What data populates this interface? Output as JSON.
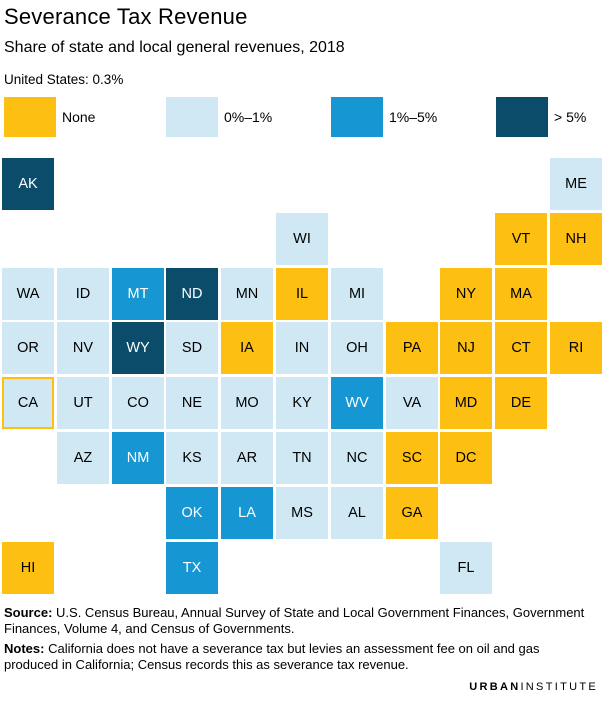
{
  "title": "Severance Tax Revenue",
  "subtitle": "Share of state and local general revenues, 2018",
  "us_average": "United States: 0.3%",
  "colors": {
    "none": "#fdbf11",
    "low": "#cfe8f3",
    "mid": "#1696d2",
    "high": "#0a4c6a"
  },
  "chart_data": {
    "type": "tile-map",
    "title": "Severance Tax Revenue",
    "subtitle": "Share of state and local general revenues, 2018",
    "legend": [
      {
        "key": "none",
        "label": "None"
      },
      {
        "key": "low",
        "label": "0%–1%"
      },
      {
        "key": "mid",
        "label": "1%–5%"
      },
      {
        "key": "high",
        "label": "> 5%"
      }
    ],
    "states": [
      {
        "abbr": "AK",
        "category": "high",
        "row": 0,
        "col": 0
      },
      {
        "abbr": "ME",
        "category": "low",
        "row": 0,
        "col": 10
      },
      {
        "abbr": "WI",
        "category": "low",
        "row": 1,
        "col": 5
      },
      {
        "abbr": "VT",
        "category": "none",
        "row": 1,
        "col": 9
      },
      {
        "abbr": "NH",
        "category": "none",
        "row": 1,
        "col": 10
      },
      {
        "abbr": "WA",
        "category": "low",
        "row": 2,
        "col": 0
      },
      {
        "abbr": "ID",
        "category": "low",
        "row": 2,
        "col": 1
      },
      {
        "abbr": "MT",
        "category": "mid",
        "row": 2,
        "col": 2
      },
      {
        "abbr": "ND",
        "category": "high",
        "row": 2,
        "col": 3
      },
      {
        "abbr": "MN",
        "category": "low",
        "row": 2,
        "col": 4
      },
      {
        "abbr": "IL",
        "category": "none",
        "row": 2,
        "col": 5
      },
      {
        "abbr": "MI",
        "category": "low",
        "row": 2,
        "col": 6
      },
      {
        "abbr": "NY",
        "category": "none",
        "row": 2,
        "col": 8
      },
      {
        "abbr": "MA",
        "category": "none",
        "row": 2,
        "col": 9
      },
      {
        "abbr": "OR",
        "category": "low",
        "row": 3,
        "col": 0
      },
      {
        "abbr": "NV",
        "category": "low",
        "row": 3,
        "col": 1
      },
      {
        "abbr": "WY",
        "category": "high",
        "row": 3,
        "col": 2
      },
      {
        "abbr": "SD",
        "category": "low",
        "row": 3,
        "col": 3
      },
      {
        "abbr": "IA",
        "category": "none",
        "row": 3,
        "col": 4
      },
      {
        "abbr": "IN",
        "category": "low",
        "row": 3,
        "col": 5
      },
      {
        "abbr": "OH",
        "category": "low",
        "row": 3,
        "col": 6
      },
      {
        "abbr": "PA",
        "category": "none",
        "row": 3,
        "col": 7
      },
      {
        "abbr": "NJ",
        "category": "none",
        "row": 3,
        "col": 8
      },
      {
        "abbr": "CT",
        "category": "none",
        "row": 3,
        "col": 9
      },
      {
        "abbr": "RI",
        "category": "none",
        "row": 3,
        "col": 10
      },
      {
        "abbr": "CA",
        "category": "low",
        "row": 4,
        "col": 0,
        "outlined": true
      },
      {
        "abbr": "UT",
        "category": "low",
        "row": 4,
        "col": 1
      },
      {
        "abbr": "CO",
        "category": "low",
        "row": 4,
        "col": 2
      },
      {
        "abbr": "NE",
        "category": "low",
        "row": 4,
        "col": 3
      },
      {
        "abbr": "MO",
        "category": "low",
        "row": 4,
        "col": 4
      },
      {
        "abbr": "KY",
        "category": "low",
        "row": 4,
        "col": 5
      },
      {
        "abbr": "WV",
        "category": "mid",
        "row": 4,
        "col": 6
      },
      {
        "abbr": "VA",
        "category": "low",
        "row": 4,
        "col": 7
      },
      {
        "abbr": "MD",
        "category": "none",
        "row": 4,
        "col": 8
      },
      {
        "abbr": "DE",
        "category": "none",
        "row": 4,
        "col": 9
      },
      {
        "abbr": "AZ",
        "category": "low",
        "row": 5,
        "col": 1
      },
      {
        "abbr": "NM",
        "category": "mid",
        "row": 5,
        "col": 2
      },
      {
        "abbr": "KS",
        "category": "low",
        "row": 5,
        "col": 3
      },
      {
        "abbr": "AR",
        "category": "low",
        "row": 5,
        "col": 4
      },
      {
        "abbr": "TN",
        "category": "low",
        "row": 5,
        "col": 5
      },
      {
        "abbr": "NC",
        "category": "low",
        "row": 5,
        "col": 6
      },
      {
        "abbr": "SC",
        "category": "none",
        "row": 5,
        "col": 7
      },
      {
        "abbr": "DC",
        "category": "none",
        "row": 5,
        "col": 8
      },
      {
        "abbr": "OK",
        "category": "mid",
        "row": 6,
        "col": 3
      },
      {
        "abbr": "LA",
        "category": "mid",
        "row": 6,
        "col": 4
      },
      {
        "abbr": "MS",
        "category": "low",
        "row": 6,
        "col": 5
      },
      {
        "abbr": "AL",
        "category": "low",
        "row": 6,
        "col": 6
      },
      {
        "abbr": "GA",
        "category": "none",
        "row": 6,
        "col": 7
      },
      {
        "abbr": "HI",
        "category": "none",
        "row": 7,
        "col": 0
      },
      {
        "abbr": "TX",
        "category": "mid",
        "row": 7,
        "col": 3
      },
      {
        "abbr": "FL",
        "category": "low",
        "row": 7,
        "col": 8
      }
    ]
  },
  "source_label": "Source:",
  "source_text": "U.S. Census Bureau, Annual Survey of State and Local Government Finances, Government Finances, Volume 4, and Census of Governments.",
  "notes_label": "Notes:",
  "notes_text": "California does not have a severance tax but levies an assessment fee on oil and gas produced in California; Census records this as severance tax revenue.",
  "logo_part1": "URBAN",
  "logo_part2": "INSTITUTE"
}
